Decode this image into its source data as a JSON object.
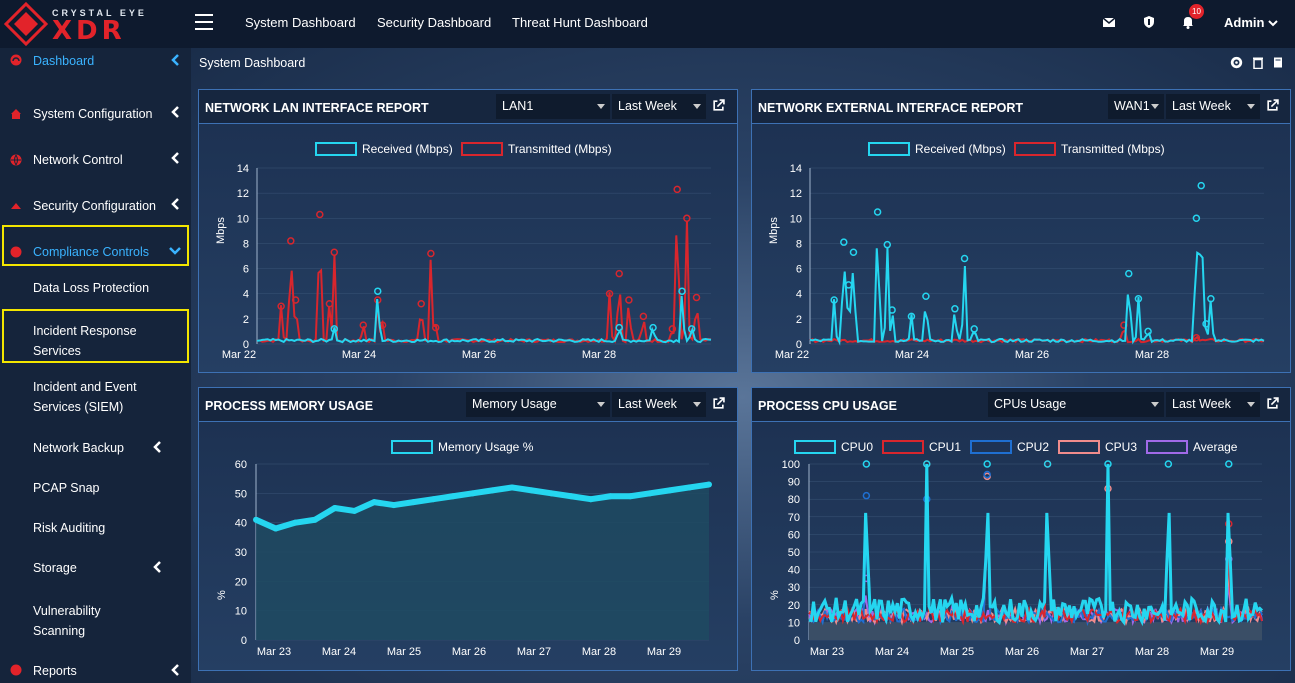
{
  "brand": {
    "line1": "CRYSTAL EYE",
    "line2": "XDR"
  },
  "nav": {
    "links": [
      "System Dashboard",
      "Security Dashboard",
      "Threat Hunt Dashboard"
    ],
    "notifications": "10",
    "user": "Admin"
  },
  "sidebar": {
    "items": [
      {
        "label": "Dashboard",
        "icon": "dashboard-icon"
      },
      {
        "label": "System Configuration",
        "icon": "home-icon"
      },
      {
        "label": "Network Control",
        "icon": "globe-icon"
      },
      {
        "label": "Security Configuration",
        "icon": "shield-icon"
      },
      {
        "label": "Compliance Controls",
        "icon": "compliance-icon"
      },
      {
        "label": "Data Loss Protection"
      },
      {
        "label": "Incident Response Services",
        "label2": "Services"
      },
      {
        "label": "Incident and Event",
        "label2": "Services (SIEM)"
      },
      {
        "label": "Network Backup"
      },
      {
        "label": "PCAP Snap"
      },
      {
        "label": "Risk Auditing"
      },
      {
        "label": "Storage"
      },
      {
        "label": "Vulnerability",
        "label2": "Scanning"
      },
      {
        "label": "Reports",
        "icon": "reports-icon"
      }
    ]
  },
  "page": {
    "breadcrumb": "System Dashboard"
  },
  "panels": {
    "lan": {
      "title": "NETWORK LAN INTERFACE REPORT",
      "select": "LAN1",
      "range": "Last Week"
    },
    "wan": {
      "title": "NETWORK EXTERNAL INTERFACE REPORT",
      "select": "WAN1",
      "range": "Last Week"
    },
    "mem": {
      "title": "PROCESS MEMORY USAGE",
      "select": "Memory Usage",
      "range": "Last Week"
    },
    "cpu": {
      "title": "PROCESS CPU USAGE",
      "select": "CPUs Usage",
      "range": "Last Week"
    }
  },
  "colors": {
    "received": "#25d6f0",
    "transmitted": "#d8262d",
    "cpu0": "#25d6f0",
    "cpu1": "#d8262d",
    "cpu2": "#1f6fd1",
    "cpu3": "#f08c8c",
    "average": "#a06ae8",
    "accent": "#3ab3ff",
    "highlight": "#f3e600"
  },
  "chart_data": [
    {
      "type": "line",
      "title": "NETWORK LAN INTERFACE REPORT",
      "ylabel": "Mbps",
      "ylim": [
        0,
        14
      ],
      "yticks": [
        0,
        2,
        4,
        6,
        8,
        10,
        12,
        14
      ],
      "xticks": [
        "Mar 22",
        "Mar 24",
        "Mar 26",
        "Mar 28"
      ],
      "series": [
        {
          "name": "Received (Mbps)",
          "peaks": [
            [
              1.6,
              1.2
            ],
            [
              2.5,
              4.2
            ],
            [
              7.5,
              1.3
            ],
            [
              8.2,
              1.3
            ],
            [
              8.8,
              4.2
            ],
            [
              9.0,
              1.2
            ]
          ]
        },
        {
          "name": "Transmitted (Mbps)",
          "peaks": [
            [
              0.5,
              3.0
            ],
            [
              0.7,
              8.2
            ],
            [
              0.8,
              3.5
            ],
            [
              1.3,
              10.3
            ],
            [
              1.5,
              3.2
            ],
            [
              1.6,
              7.3
            ],
            [
              2.2,
              1.5
            ],
            [
              2.5,
              3.5
            ],
            [
              2.6,
              1.5
            ],
            [
              3.4,
              3.2
            ],
            [
              3.6,
              7.2
            ],
            [
              3.7,
              1.3
            ],
            [
              7.3,
              4.0
            ],
            [
              7.5,
              5.6
            ],
            [
              7.7,
              3.5
            ],
            [
              8.0,
              2.2
            ],
            [
              8.6,
              1.2
            ],
            [
              8.7,
              12.3
            ],
            [
              8.9,
              10.0
            ],
            [
              9.1,
              3.7
            ]
          ]
        }
      ]
    },
    {
      "type": "line",
      "title": "NETWORK EXTERNAL INTERFACE REPORT",
      "ylabel": "Mbps",
      "ylim": [
        0,
        14
      ],
      "yticks": [
        0,
        2,
        4,
        6,
        8,
        10,
        12,
        14
      ],
      "xticks": [
        "Mar 22",
        "Mar 24",
        "Mar 26",
        "Mar 28"
      ],
      "series": [
        {
          "name": "Received (Mbps)",
          "peaks": [
            [
              0.5,
              3.5
            ],
            [
              0.7,
              8.1
            ],
            [
              0.8,
              4.7
            ],
            [
              0.9,
              7.3
            ],
            [
              1.4,
              10.5
            ],
            [
              1.6,
              7.9
            ],
            [
              1.7,
              2.7
            ],
            [
              2.1,
              2.2
            ],
            [
              2.4,
              3.8
            ],
            [
              3.0,
              2.8
            ],
            [
              3.2,
              6.8
            ],
            [
              3.4,
              1.2
            ],
            [
              6.6,
              5.6
            ],
            [
              6.8,
              3.6
            ],
            [
              7.0,
              1.0
            ],
            [
              8.0,
              10.0
            ],
            [
              8.1,
              12.6
            ],
            [
              8.2,
              1.6
            ],
            [
              8.3,
              3.6
            ]
          ]
        },
        {
          "name": "Transmitted (Mbps)",
          "peaks": [
            [
              6.5,
              1.5
            ],
            [
              8.0,
              0.5
            ]
          ]
        }
      ]
    },
    {
      "type": "area",
      "title": "PROCESS MEMORY USAGE",
      "ylabel": "%",
      "ylim": [
        0,
        60
      ],
      "yticks": [
        0,
        10,
        20,
        30,
        40,
        50,
        60
      ],
      "xticks": [
        "Mar 23",
        "Mar 24",
        "Mar 25",
        "Mar 26",
        "Mar 27",
        "Mar 28",
        "Mar 29"
      ],
      "series": [
        {
          "name": "Memory Usage %",
          "values": [
            41,
            38,
            40,
            41,
            45,
            44,
            47,
            46,
            47,
            48,
            49,
            50,
            51,
            52,
            51,
            50,
            49,
            48,
            49,
            49,
            50,
            51,
            52,
            53
          ]
        }
      ]
    },
    {
      "type": "line",
      "title": "PROCESS CPU USAGE",
      "ylabel": "%",
      "ylim": [
        0,
        100
      ],
      "yticks": [
        0,
        10,
        20,
        30,
        40,
        50,
        60,
        70,
        80,
        90,
        100
      ],
      "xticks": [
        "Mar 23",
        "Mar 24",
        "Mar 25",
        "Mar 26",
        "Mar 27",
        "Mar 28",
        "Mar 29"
      ],
      "series": [
        {
          "name": "CPU0",
          "spikes": [
            [
              0.95,
              100
            ],
            [
              1.95,
              100
            ],
            [
              2.95,
              100
            ],
            [
              3.95,
              100
            ],
            [
              4.95,
              100
            ],
            [
              5.95,
              100
            ],
            [
              6.95,
              100
            ]
          ]
        },
        {
          "name": "CPU1",
          "spikes": [
            [
              1.95,
              100
            ],
            [
              3.95,
              100
            ],
            [
              6.95,
              66
            ]
          ]
        },
        {
          "name": "CPU2",
          "spikes": [
            [
              0.95,
              82
            ],
            [
              1.95,
              80
            ],
            [
              2.95,
              94
            ]
          ]
        },
        {
          "name": "CPU3",
          "spikes": [
            [
              2.95,
              93
            ],
            [
              4.95,
              86
            ],
            [
              6.95,
              56
            ]
          ]
        },
        {
          "name": "Average",
          "spikes": [
            [
              0.95,
              35
            ],
            [
              6.95,
              46
            ]
          ]
        }
      ]
    }
  ]
}
